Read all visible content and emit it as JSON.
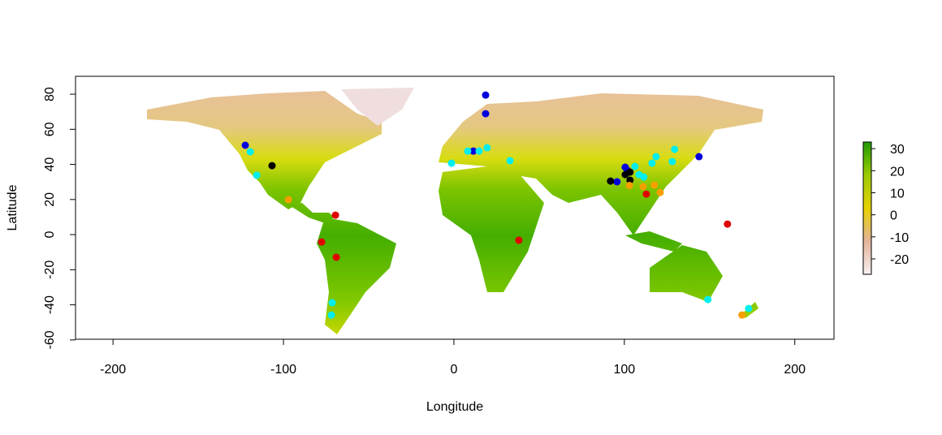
{
  "chart_data": {
    "type": "scatter",
    "x_label": "Longitude",
    "y_label": "Latitude",
    "xlim": [
      -222,
      223
    ],
    "ylim": [
      -59.6,
      90.2
    ],
    "xticks": [
      -200,
      -100,
      0,
      100,
      200
    ],
    "yticks": [
      -60,
      -40,
      -20,
      0,
      20,
      40,
      60,
      80
    ],
    "series": [
      {
        "color": "#0000dd",
        "x": [
          -122.4,
          18.6,
          18.6,
          11.4,
          100.5,
          101.9,
          95.7,
          143.8
        ],
        "values": [
          50.9,
          79.5,
          68.9,
          47.6,
          38.4,
          36.5,
          30.1,
          44.4
        ]
      },
      {
        "color": "#000000",
        "x": [
          -106.7,
          91.9,
          103.3,
          103.3,
          100.5
        ],
        "values": [
          39.3,
          30.5,
          35.6,
          31.0,
          34.2
        ]
      },
      {
        "color": "#e00000",
        "x": [
          -69.5,
          -77.6,
          -69.0,
          38.1,
          112.9,
          160.5
        ],
        "values": [
          11.1,
          -4.2,
          -12.9,
          -3.2,
          23.1,
          6.0
        ]
      },
      {
        "color": "#f5a000",
        "x": [
          -97.1,
          111.0,
          121.0,
          117.6,
          103.0,
          169.0
        ],
        "values": [
          19.9,
          27.3,
          24.0,
          28.2,
          28.0,
          -45.8
        ]
      },
      {
        "color": "#00eeee",
        "x": [
          -119.5,
          -115.7,
          -1.4,
          8.1,
          14.8,
          19.5,
          32.9,
          106.2,
          108.6,
          111.4,
          116.2,
          118.6,
          128.1,
          129.5,
          -71.4,
          -71.9,
          149.0,
          172.9
        ],
        "values": [
          47.2,
          33.8,
          40.7,
          47.6,
          47.6,
          49.5,
          42.1,
          38.8,
          34.2,
          32.8,
          40.7,
          44.4,
          41.6,
          48.6,
          -38.8,
          -45.8,
          -37.0,
          -42.1
        ]
      }
    ],
    "colorbar": {
      "lim": [
        -27,
        33
      ],
      "ticks": [
        -20,
        -10,
        0,
        10,
        20,
        30
      ],
      "colors": [
        "#f7f0f0",
        "#e3b49a",
        "#e6d000",
        "#9ccc00",
        "#1f9a00"
      ]
    }
  }
}
